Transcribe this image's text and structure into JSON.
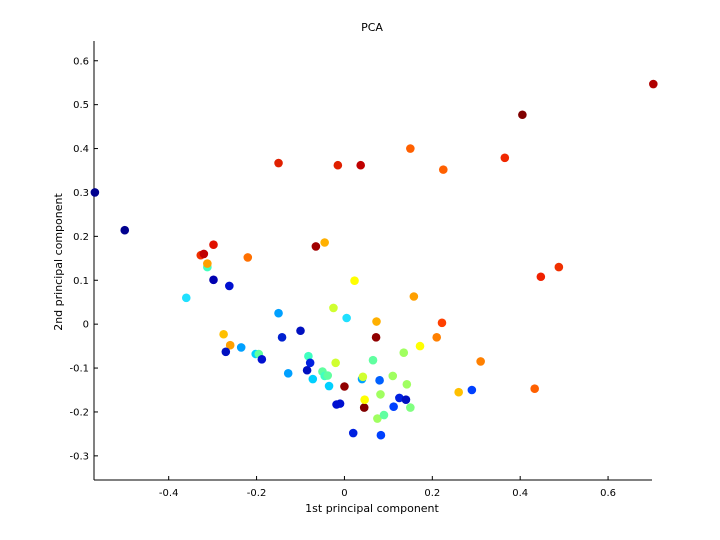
{
  "chart_data": {
    "type": "scatter",
    "title": "PCA",
    "xlabel": "1st principal component",
    "ylabel": "2nd principal component",
    "xlim": [
      -0.57,
      0.7
    ],
    "ylim": [
      -0.355,
      0.645
    ],
    "xticks": [
      -0.4,
      -0.2,
      0,
      0.2,
      0.4,
      0.6
    ],
    "xtick_labels": [
      "-0.4",
      "-0.2",
      "0",
      "0.2",
      "0.4",
      "0.6"
    ],
    "yticks": [
      -0.3,
      -0.2,
      -0.1,
      0,
      0.1,
      0.2,
      0.3,
      0.4,
      0.5,
      0.6
    ],
    "ytick_labels": [
      "-0.3",
      "-0.2",
      "-0.1",
      "0",
      "0.1",
      "0.2",
      "0.3",
      "0.4",
      "0.5",
      "0.6"
    ],
    "grid": false,
    "legend": "none",
    "points": [
      {
        "x": -0.568,
        "y": 0.3,
        "color": "#00008f"
      },
      {
        "x": -0.5,
        "y": 0.214,
        "color": "#00008f"
      },
      {
        "x": -0.15,
        "y": 0.367,
        "color": "#e02000"
      },
      {
        "x": -0.015,
        "y": 0.362,
        "color": "#e02000"
      },
      {
        "x": 0.037,
        "y": 0.362,
        "color": "#c00000"
      },
      {
        "x": 0.15,
        "y": 0.4,
        "color": "#ff6000"
      },
      {
        "x": 0.225,
        "y": 0.352,
        "color": "#ff6000"
      },
      {
        "x": 0.365,
        "y": 0.379,
        "color": "#f02800"
      },
      {
        "x": 0.405,
        "y": 0.477,
        "color": "#800000"
      },
      {
        "x": 0.703,
        "y": 0.547,
        "color": "#b00000"
      },
      {
        "x": -0.327,
        "y": 0.157,
        "color": "#f03000"
      },
      {
        "x": -0.32,
        "y": 0.16,
        "color": "#c00000"
      },
      {
        "x": -0.298,
        "y": 0.181,
        "color": "#e01000"
      },
      {
        "x": -0.312,
        "y": 0.13,
        "color": "#40ffc0"
      },
      {
        "x": -0.312,
        "y": 0.138,
        "color": "#ffa000"
      },
      {
        "x": -0.298,
        "y": 0.101,
        "color": "#0000b0"
      },
      {
        "x": -0.262,
        "y": 0.087,
        "color": "#0010d0"
      },
      {
        "x": -0.22,
        "y": 0.152,
        "color": "#ff7000"
      },
      {
        "x": -0.065,
        "y": 0.177,
        "color": "#a00000"
      },
      {
        "x": -0.045,
        "y": 0.186,
        "color": "#ffb000"
      },
      {
        "x": 0.447,
        "y": 0.108,
        "color": "#f02000"
      },
      {
        "x": 0.488,
        "y": 0.13,
        "color": "#f03000"
      },
      {
        "x": -0.36,
        "y": 0.06,
        "color": "#20e0ff"
      },
      {
        "x": -0.15,
        "y": 0.025,
        "color": "#00a0ff"
      },
      {
        "x": -0.142,
        "y": -0.03,
        "color": "#0020d0"
      },
      {
        "x": -0.1,
        "y": -0.015,
        "color": "#0010c0"
      },
      {
        "x": -0.025,
        "y": 0.037,
        "color": "#d0ff30"
      },
      {
        "x": 0.005,
        "y": 0.014,
        "color": "#20e0ff"
      },
      {
        "x": 0.023,
        "y": 0.099,
        "color": "#ffff00"
      },
      {
        "x": 0.073,
        "y": 0.006,
        "color": "#ffb000"
      },
      {
        "x": 0.158,
        "y": 0.063,
        "color": "#ffa000"
      },
      {
        "x": 0.222,
        "y": 0.003,
        "color": "#ff4000"
      },
      {
        "x": -0.275,
        "y": -0.023,
        "color": "#ffc000"
      },
      {
        "x": -0.26,
        "y": -0.048,
        "color": "#ffa000"
      },
      {
        "x": -0.27,
        "y": -0.063,
        "color": "#0010c0"
      },
      {
        "x": -0.235,
        "y": -0.053,
        "color": "#00a0ff"
      },
      {
        "x": -0.202,
        "y": -0.068,
        "color": "#00d0ff"
      },
      {
        "x": -0.195,
        "y": -0.068,
        "color": "#60ffa0"
      },
      {
        "x": -0.188,
        "y": -0.08,
        "color": "#0010d0"
      },
      {
        "x": -0.128,
        "y": -0.112,
        "color": "#00a0ff"
      },
      {
        "x": -0.085,
        "y": -0.105,
        "color": "#0010c0"
      },
      {
        "x": -0.082,
        "y": -0.073,
        "color": "#40ffc0"
      },
      {
        "x": -0.078,
        "y": -0.088,
        "color": "#0020e0"
      },
      {
        "x": -0.072,
        "y": -0.125,
        "color": "#00d0ff"
      },
      {
        "x": -0.05,
        "y": -0.108,
        "color": "#60ffa0"
      },
      {
        "x": -0.045,
        "y": -0.118,
        "color": "#40ffc0"
      },
      {
        "x": -0.038,
        "y": -0.117,
        "color": "#60ffa0"
      },
      {
        "x": -0.035,
        "y": -0.141,
        "color": "#00d0ff"
      },
      {
        "x": -0.02,
        "y": -0.088,
        "color": "#d0ff30"
      },
      {
        "x": -0.018,
        "y": -0.183,
        "color": "#0010d0"
      },
      {
        "x": -0.01,
        "y": -0.181,
        "color": "#0010d0"
      },
      {
        "x": 0.0,
        "y": -0.142,
        "color": "#900000"
      },
      {
        "x": 0.02,
        "y": -0.248,
        "color": "#0020e0"
      },
      {
        "x": 0.04,
        "y": -0.125,
        "color": "#00a0ff"
      },
      {
        "x": 0.042,
        "y": -0.12,
        "color": "#d0ff30"
      },
      {
        "x": 0.045,
        "y": -0.19,
        "color": "#800000"
      },
      {
        "x": 0.046,
        "y": -0.172,
        "color": "#ffff00"
      },
      {
        "x": 0.065,
        "y": -0.082,
        "color": "#60ffa0"
      },
      {
        "x": 0.072,
        "y": -0.03,
        "color": "#900000"
      },
      {
        "x": 0.075,
        "y": -0.215,
        "color": "#a0ff60"
      },
      {
        "x": 0.08,
        "y": -0.128,
        "color": "#0060ff"
      },
      {
        "x": 0.082,
        "y": -0.16,
        "color": "#a0ff60"
      },
      {
        "x": 0.083,
        "y": -0.253,
        "color": "#0040ff"
      },
      {
        "x": 0.09,
        "y": -0.207,
        "color": "#60ffa0"
      },
      {
        "x": 0.11,
        "y": -0.118,
        "color": "#a0ff60"
      },
      {
        "x": 0.112,
        "y": -0.188,
        "color": "#0040ff"
      },
      {
        "x": 0.125,
        "y": -0.168,
        "color": "#0020e0"
      },
      {
        "x": 0.135,
        "y": -0.065,
        "color": "#a0ff60"
      },
      {
        "x": 0.14,
        "y": -0.172,
        "color": "#0010c0"
      },
      {
        "x": 0.142,
        "y": -0.137,
        "color": "#a0ff60"
      },
      {
        "x": 0.15,
        "y": -0.19,
        "color": "#80ff80"
      },
      {
        "x": 0.172,
        "y": -0.05,
        "color": "#ffff00"
      },
      {
        "x": 0.21,
        "y": -0.03,
        "color": "#ff8000"
      },
      {
        "x": 0.26,
        "y": -0.155,
        "color": "#ffc000"
      },
      {
        "x": 0.29,
        "y": -0.15,
        "color": "#0040ff"
      },
      {
        "x": 0.31,
        "y": -0.085,
        "color": "#ff8000"
      },
      {
        "x": 0.433,
        "y": -0.147,
        "color": "#ff6000"
      }
    ]
  }
}
